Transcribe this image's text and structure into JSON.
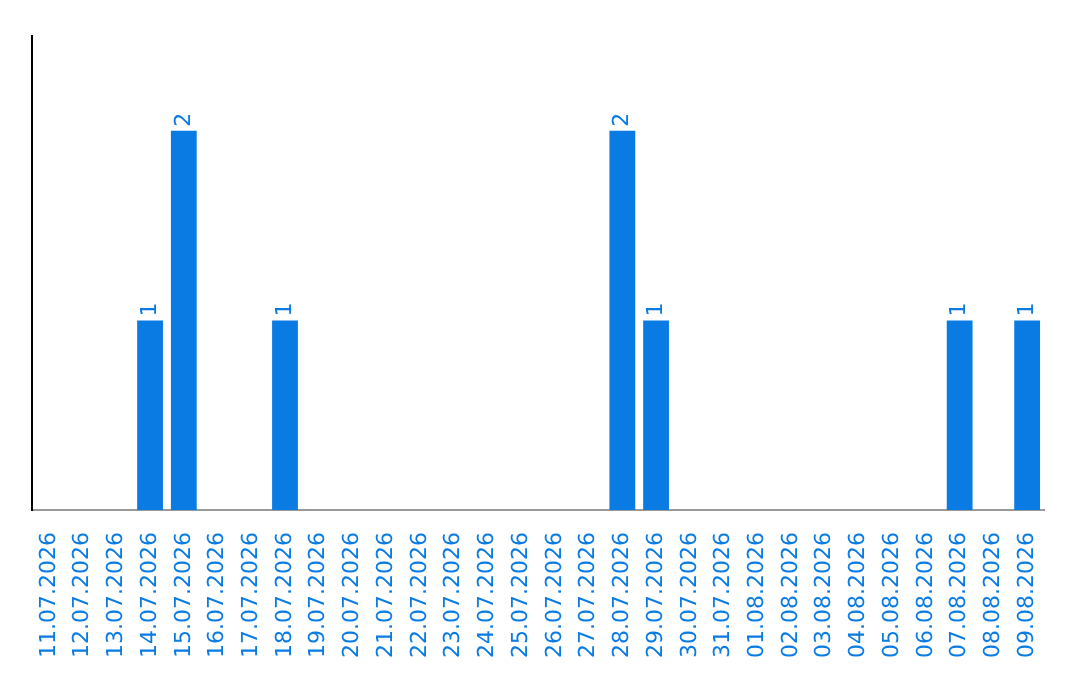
{
  "chart_data": {
    "type": "bar",
    "categories": [
      "11.07.2026",
      "12.07.2026",
      "13.07.2026",
      "14.07.2026",
      "15.07.2026",
      "16.07.2026",
      "17.07.2026",
      "18.07.2026",
      "19.07.2026",
      "20.07.2026",
      "21.07.2026",
      "22.07.2026",
      "23.07.2026",
      "24.07.2026",
      "25.07.2026",
      "26.07.2026",
      "27.07.2026",
      "28.07.2026",
      "29.07.2026",
      "30.07.2026",
      "31.07.2026",
      "01.08.2026",
      "02.08.2026",
      "03.08.2026",
      "04.08.2026",
      "05.08.2026",
      "06.08.2026",
      "07.08.2026",
      "08.08.2026",
      "09.08.2026"
    ],
    "values": [
      0,
      0,
      0,
      1,
      2,
      0,
      0,
      1,
      0,
      0,
      0,
      0,
      0,
      0,
      0,
      0,
      0,
      2,
      1,
      0,
      0,
      0,
      0,
      0,
      0,
      0,
      0,
      1,
      0,
      1
    ],
    "value_labels": [
      null,
      null,
      null,
      "1",
      "2",
      null,
      null,
      "1",
      null,
      null,
      null,
      null,
      null,
      null,
      null,
      null,
      null,
      "2",
      "1",
      null,
      null,
      null,
      null,
      null,
      null,
      null,
      null,
      "1",
      null,
      "1"
    ],
    "color": "#0a7be3",
    "grid": false,
    "legend": false
  }
}
